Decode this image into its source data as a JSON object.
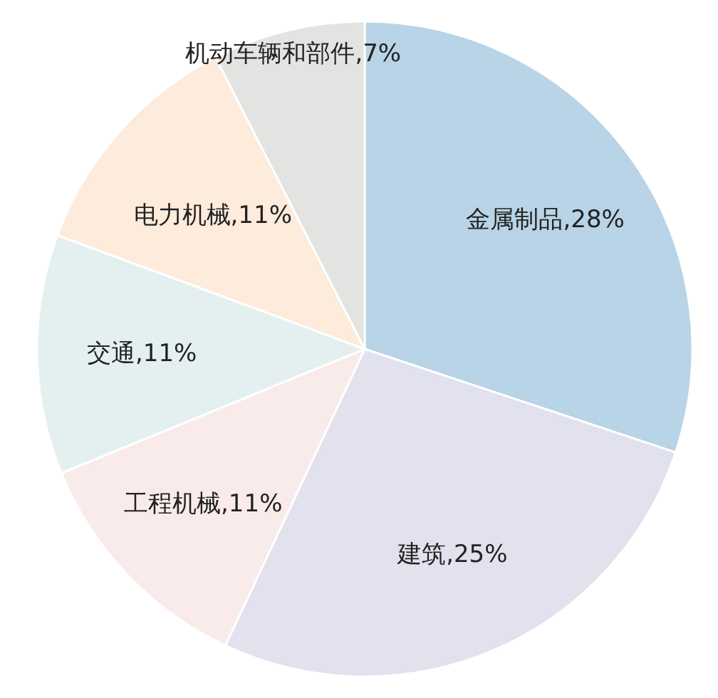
{
  "chart_data": {
    "type": "pie",
    "categories": [
      "金属制品",
      "建筑",
      "工程机械",
      "交通",
      "电力机械",
      "机动车辆和部件"
    ],
    "values": [
      28,
      25,
      11,
      11,
      11,
      7
    ],
    "value_labels": [
      "28%",
      "25%",
      "11%",
      "11%",
      "11%",
      "7%"
    ],
    "colors": [
      "#b8d4e6",
      "#e2e2ee",
      "#f8ebea",
      "#e3f0ef",
      "#fdebdc",
      "#e3e3e1"
    ]
  }
}
